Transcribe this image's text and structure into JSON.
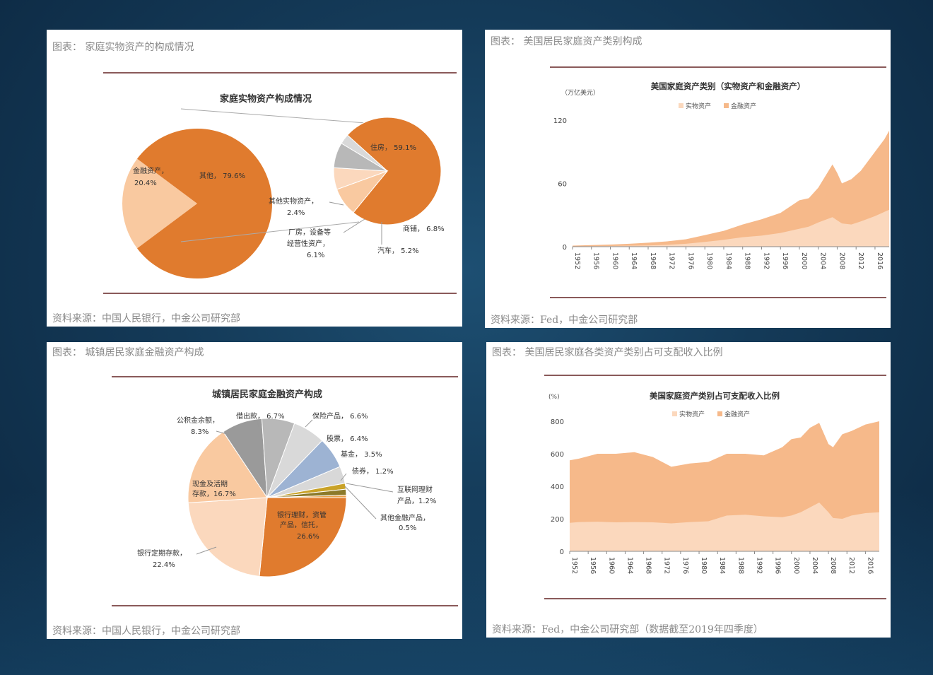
{
  "panels": [
    {
      "title": "图表： 家庭实物资产的构成情况",
      "source": "资料来源：中国人民银行，中金公司研究部",
      "chart_title": "家庭实物资产构成情况"
    },
    {
      "title": "图表： 美国居民家庭资产类别构成",
      "source": "资料来源：Fed，中金公司研究部",
      "chart_title": "美国家庭资产类别（实物资产和金融资产）",
      "unit": "（万亿美元）"
    },
    {
      "title": "图表： 城镇居民家庭金融资产构成",
      "source": "资料来源：中国人民银行，中金公司研究部",
      "chart_title": "城镇居民家庭金融资产构成"
    },
    {
      "title": "图表： 美国居民家庭各类资产类别占可支配收入比例",
      "source": "资料来源：Fed，中金公司研究部（数据截至2019年四季度）",
      "chart_title": "美国家庭资产类别占可支配收入比例",
      "unit": "(%)"
    }
  ],
  "colors": {
    "orange": "#e07b2e",
    "light_orange": "#f9c9a0",
    "peach": "#f6b98a",
    "pale_peach": "#fbd8bd",
    "gray_dark": "#9a9a9a",
    "gray_mid": "#b8b8b8",
    "gray_light": "#d9d9d9",
    "blue": "#9db3d3",
    "olive": "#8c7a2a",
    "gold": "#c9a227"
  },
  "chart_data": [
    {
      "type": "pie",
      "title": "家庭实物资产构成情况",
      "main_pie": {
        "slices": [
          {
            "label": "金融资产，",
            "value_label": "20.4%",
            "value": 20.4
          },
          {
            "label": "其他，",
            "value_label": "79.6%",
            "value": 79.6
          }
        ]
      },
      "sub_pie": {
        "slices": [
          {
            "label": "住房，",
            "value_label": "59.1%",
            "value": 59.1
          },
          {
            "label": "商铺，",
            "value_label": "6.8%",
            "value": 6.8
          },
          {
            "label": "汽车，",
            "value_label": "5.2%",
            "value": 5.2
          },
          {
            "label": "厂房，设备等经营性资产，",
            "value_label": "6.1%",
            "value": 6.1
          },
          {
            "label": "其他实物资产，",
            "value_label": "2.4%",
            "value": 2.4
          }
        ]
      }
    },
    {
      "type": "area",
      "title": "美国家庭资产类别（实物资产和金融资产）",
      "ylabel": "（万亿美元）",
      "ylim": [
        0,
        120
      ],
      "yticks": [
        "0",
        "60",
        "120"
      ],
      "xticks": [
        "1952",
        "1956",
        "1960",
        "1964",
        "1968",
        "1972",
        "1976",
        "1980",
        "1984",
        "1988",
        "1992",
        "1996",
        "2000",
        "2004",
        "2008",
        "2012",
        "2016"
      ],
      "x": [
        1952,
        1956,
        1960,
        1964,
        1968,
        1972,
        1976,
        1980,
        1984,
        1988,
        1992,
        1996,
        2000,
        2002,
        2004,
        2007,
        2008,
        2009,
        2011,
        2013,
        2016,
        2018,
        2019
      ],
      "series": [
        {
          "name": "实物资产",
          "values": [
            0.3,
            0.5,
            0.7,
            0.9,
            1.2,
            1.8,
            2.8,
            4.5,
            6.5,
            9,
            10.5,
            13,
            17,
            19,
            23,
            28,
            25,
            22,
            21,
            24,
            29,
            33,
            35
          ]
        },
        {
          "name": "金融资产",
          "values": [
            1,
            1.5,
            2,
            2.8,
            3.8,
            5,
            7,
            11,
            15,
            21,
            26,
            32,
            44,
            46,
            56,
            78,
            70,
            60,
            64,
            72,
            90,
            102,
            110
          ]
        }
      ],
      "legend": "top-center"
    },
    {
      "type": "pie",
      "title": "城镇居民家庭金融资产构成",
      "slices": [
        {
          "label": "银行理财，资管产品，信托，",
          "value_label": "26.6%",
          "value": 26.6
        },
        {
          "label": "银行定期存款，",
          "value_label": "22.4%",
          "value": 22.4
        },
        {
          "label": "现金及活期存款，",
          "value_label": "16.7%",
          "value": 16.7
        },
        {
          "label": "公积金余额，",
          "value_label": "8.3%",
          "value": 8.3
        },
        {
          "label": "借出款，",
          "value_label": "6.7%",
          "value": 6.7
        },
        {
          "label": "保险产品，",
          "value_label": "6.6%",
          "value": 6.6
        },
        {
          "label": "股票，",
          "value_label": "6.4%",
          "value": 6.4
        },
        {
          "label": "基金，",
          "value_label": "3.5%",
          "value": 3.5
        },
        {
          "label": "债券，",
          "value_label": "1.2%",
          "value": 1.2
        },
        {
          "label": "互联网理财产品，",
          "value_label": "1.2%",
          "value": 1.2
        },
        {
          "label": "其他金融产品，",
          "value_label": "0.5%",
          "value": 0.5
        }
      ]
    },
    {
      "type": "area",
      "title": "美国家庭资产类别占可支配收入比例",
      "ylabel": "(%)",
      "ylim": [
        0,
        800
      ],
      "yticks": [
        "0",
        "200",
        "400",
        "600",
        "800"
      ],
      "xticks": [
        "1952",
        "1956",
        "1960",
        "1964",
        "1968",
        "1972",
        "1976",
        "1980",
        "1984",
        "1988",
        "1992",
        "1996",
        "2000",
        "2004",
        "2008",
        "2012",
        "2016"
      ],
      "x": [
        1952,
        1954,
        1958,
        1962,
        1966,
        1970,
        1974,
        1978,
        1982,
        1986,
        1990,
        1994,
        1998,
        2000,
        2002,
        2004,
        2006,
        2008,
        2009,
        2011,
        2013,
        2016,
        2019
      ],
      "series": [
        {
          "name": "实物资产",
          "values": [
            175,
            180,
            182,
            178,
            180,
            178,
            172,
            180,
            185,
            220,
            225,
            215,
            210,
            220,
            240,
            270,
            300,
            240,
            205,
            200,
            220,
            235,
            240
          ]
        },
        {
          "name": "金融资产",
          "values": [
            560,
            570,
            600,
            600,
            610,
            580,
            520,
            540,
            550,
            600,
            600,
            590,
            640,
            690,
            700,
            760,
            790,
            660,
            640,
            720,
            740,
            780,
            800
          ]
        }
      ],
      "legend": "top-center"
    }
  ]
}
